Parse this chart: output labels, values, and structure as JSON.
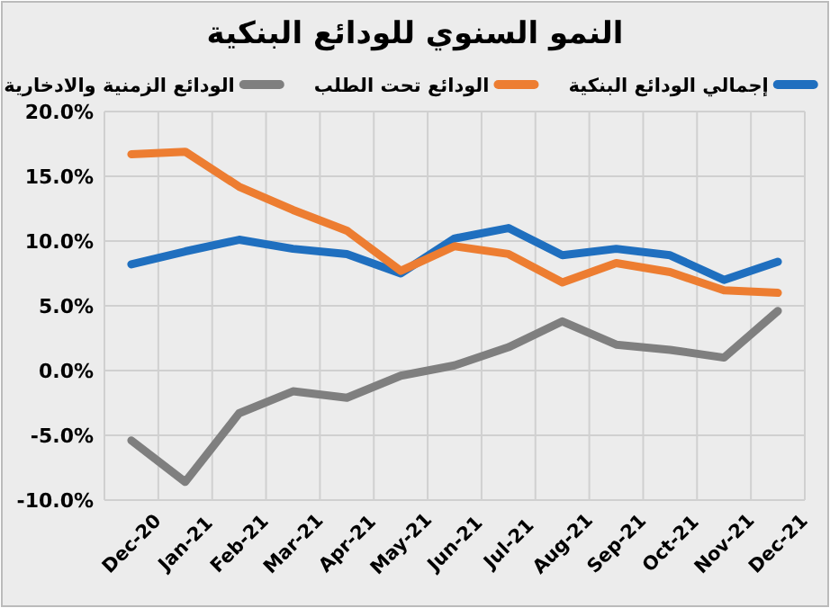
{
  "chart_data": {
    "type": "line",
    "title": "النمو السنوي للودائع البنكية",
    "categories": [
      "Dec-20",
      "Jan-21",
      "Feb-21",
      "Mar-21",
      "Apr-21",
      "May-21",
      "Jun-21",
      "Jul-21",
      "Aug-21",
      "Sep-21",
      "Oct-21",
      "Nov-21",
      "Dec-21"
    ],
    "series": [
      {
        "name": "إجمالي الودائع البنكية",
        "color": "#1f6fbf",
        "values": [
          8.2,
          9.2,
          10.1,
          9.4,
          9.0,
          7.5,
          10.2,
          11.0,
          8.9,
          9.4,
          8.9,
          7.0,
          8.4
        ]
      },
      {
        "name": "الودائع تحت الطلب",
        "color": "#ed7d31",
        "values": [
          16.7,
          16.9,
          14.2,
          12.4,
          10.8,
          7.7,
          9.6,
          9.0,
          6.8,
          8.3,
          7.6,
          6.2,
          6.0
        ]
      },
      {
        "name": "الودائع الزمنية والادخارية",
        "color": "#7f7f7f",
        "values": [
          -5.4,
          -8.6,
          -3.3,
          -1.6,
          -2.1,
          -0.4,
          0.4,
          1.8,
          3.8,
          2.0,
          1.6,
          1.0,
          4.6
        ]
      }
    ],
    "ylim": [
      -10,
      20
    ],
    "yticks": [
      {
        "value": -10,
        "label": "-10.0%"
      },
      {
        "value": -5,
        "label": "-5.0%"
      },
      {
        "value": 0,
        "label": "0.0%"
      },
      {
        "value": 5,
        "label": "5.0%"
      },
      {
        "value": 10,
        "label": "10.0%"
      },
      {
        "value": 15,
        "label": "15.0%"
      },
      {
        "value": 20,
        "label": "20.0%"
      }
    ],
    "grid": true,
    "legend": "top",
    "marker": "none",
    "line_style": "solid"
  }
}
